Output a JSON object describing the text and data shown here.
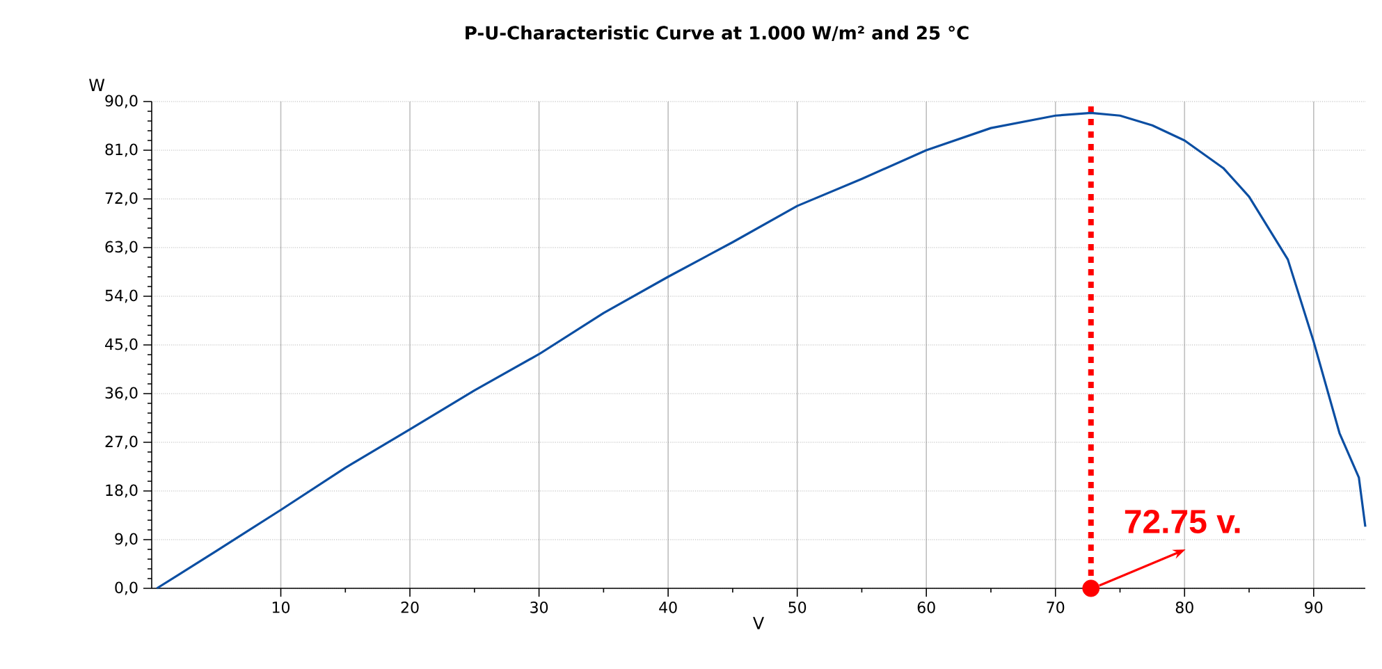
{
  "chart_data": {
    "type": "line",
    "title": "P-U-Characteristic Curve at 1.000 W/m² and 25 °C",
    "xlabel": "V",
    "ylabel": "W",
    "xlim": [
      0,
      94
    ],
    "ylim": [
      0,
      90
    ],
    "xticks": [
      10,
      20,
      30,
      40,
      50,
      60,
      70,
      80,
      90
    ],
    "yticks": [
      {
        "value": 0,
        "label": "0,0"
      },
      {
        "value": 9,
        "label": "9,0"
      },
      {
        "value": 18,
        "label": "18,0"
      },
      {
        "value": 27,
        "label": "27,0"
      },
      {
        "value": 36,
        "label": "36,0"
      },
      {
        "value": 45,
        "label": "45,0"
      },
      {
        "value": 54,
        "label": "54,0"
      },
      {
        "value": 63,
        "label": "63,0"
      },
      {
        "value": 72,
        "label": "72,0"
      },
      {
        "value": 81,
        "label": "81,0"
      },
      {
        "value": 90,
        "label": "90,0"
      }
    ],
    "grid": true,
    "series": [
      {
        "color": "#0b4ea2",
        "x": [
          0.4,
          5,
          10,
          15,
          20,
          25,
          30,
          35,
          40,
          45,
          50,
          55,
          60,
          65,
          70,
          72.75,
          75,
          77.5,
          80,
          83,
          85,
          88,
          90,
          92,
          93.5,
          94
        ],
        "values": [
          0,
          6.9,
          14.5,
          22.3,
          29.4,
          36.6,
          43.3,
          50.9,
          57.6,
          64.0,
          70.7,
          75.7,
          81.0,
          85.1,
          87.4,
          87.9,
          87.4,
          85.6,
          82.8,
          77.7,
          72.4,
          60.8,
          45.6,
          28.7,
          20.5,
          11.4
        ]
      },
      {
        "type": "scatter",
        "color": "#ff0000",
        "x": [
          72.75
        ],
        "values": [
          0
        ]
      }
    ],
    "ref_lines": [
      {
        "axis": "x",
        "value": 72.75,
        "color": "#ff0000",
        "line_style": "dotted"
      }
    ],
    "annotations": [
      {
        "text": "72.75 v.",
        "x": 72.75,
        "y": 0
      }
    ]
  }
}
